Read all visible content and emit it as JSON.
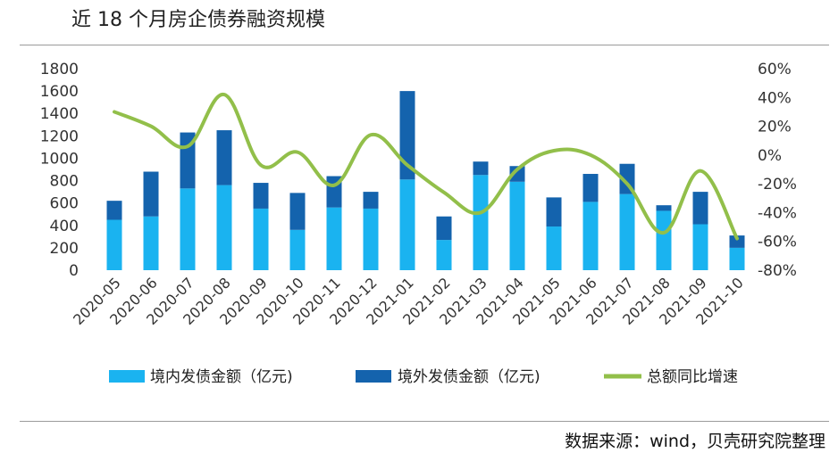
{
  "title": "近 18 个月房企债券融资规模",
  "source": "数据来源：wind，贝壳研究院整理",
  "colors": {
    "domestic": "#1ab3f0",
    "overseas": "#1463ad",
    "growth": "#92bf4a"
  },
  "chart_data": {
    "type": "bar",
    "categories": [
      "2020-05",
      "2020-06",
      "2020-07",
      "2020-08",
      "2020-09",
      "2020-10",
      "2020-11",
      "2020-12",
      "2021-01",
      "2021-02",
      "2021-03",
      "2021-04",
      "2021-05",
      "2021-06",
      "2021-07",
      "2021-08",
      "2021-09",
      "2021-10"
    ],
    "series": [
      {
        "name": "境内发债金额（亿元)",
        "type": "bar",
        "stack": "total",
        "axis": "left",
        "values": [
          450,
          480,
          730,
          760,
          550,
          360,
          560,
          550,
          810,
          270,
          850,
          790,
          390,
          610,
          680,
          530,
          410,
          200
        ]
      },
      {
        "name": "境外发债金额（亿元)",
        "type": "bar",
        "stack": "total",
        "axis": "left",
        "values": [
          170,
          400,
          500,
          490,
          230,
          330,
          280,
          150,
          790,
          210,
          120,
          140,
          260,
          250,
          270,
          50,
          290,
          110
        ]
      },
      {
        "name": "总额同比增速",
        "type": "line",
        "axis": "right",
        "values": [
          30,
          20,
          6,
          42,
          -7,
          2,
          -21,
          14,
          -7,
          -26,
          -40,
          -10,
          3,
          0,
          -20,
          -54,
          -11,
          -58
        ]
      }
    ],
    "y_left": {
      "min": 0,
      "max": 1800,
      "ticks": [
        "0",
        "200",
        "400",
        "600",
        "800",
        "1000",
        "1200",
        "1400",
        "1600",
        "1800"
      ]
    },
    "y_right": {
      "min": -80,
      "max": 60,
      "ticks": [
        "-80%",
        "-60%",
        "-40%",
        "-20%",
        "0%",
        "20%",
        "40%",
        "60%"
      ]
    },
    "legend_position": "bottom",
    "grid": false
  }
}
